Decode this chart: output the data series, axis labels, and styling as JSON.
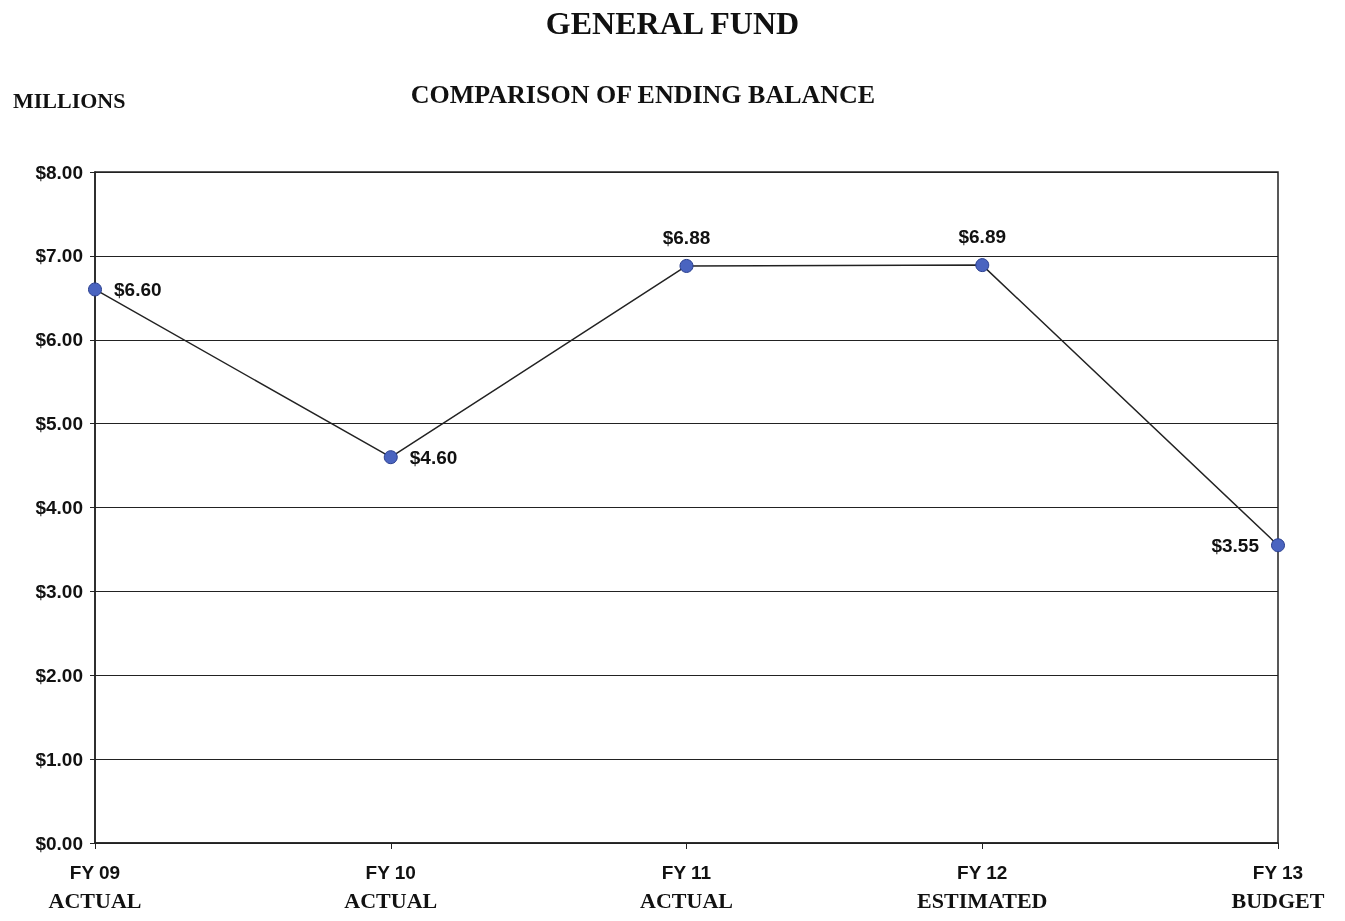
{
  "chart_data": {
    "type": "line",
    "title": "GENERAL FUND",
    "subtitle": "COMPARISON OF ENDING BALANCE",
    "ylabel": "MILLIONS",
    "categories": [
      "FY 09\nACTUAL",
      "FY 10\nACTUAL",
      "FY 11\nACTUAL",
      "FY 12\nESTIMATED",
      "FY 13\nBUDGET"
    ],
    "series": [
      {
        "color": "#4a64c0",
        "values": [
          6.6,
          4.6,
          6.88,
          6.89,
          3.55
        ],
        "value_labels": [
          "$6.60",
          "$4.60",
          "$6.88",
          "$6.89",
          "$3.55"
        ]
      }
    ],
    "ylim": [
      0,
      8
    ],
    "yticks": [
      {
        "value": 0,
        "label": "$0.00"
      },
      {
        "value": 1,
        "label": "$1.00"
      },
      {
        "value": 2,
        "label": "$2.00"
      },
      {
        "value": 3,
        "label": "$3.00"
      },
      {
        "value": 4,
        "label": "$4.00"
      },
      {
        "value": 5,
        "label": "$5.00"
      },
      {
        "value": 6,
        "label": "$6.00"
      },
      {
        "value": 7,
        "label": "$7.00"
      },
      {
        "value": 8,
        "label": "$8.00"
      }
    ],
    "grid": "y",
    "marker": "circle",
    "line_style": "solid"
  }
}
